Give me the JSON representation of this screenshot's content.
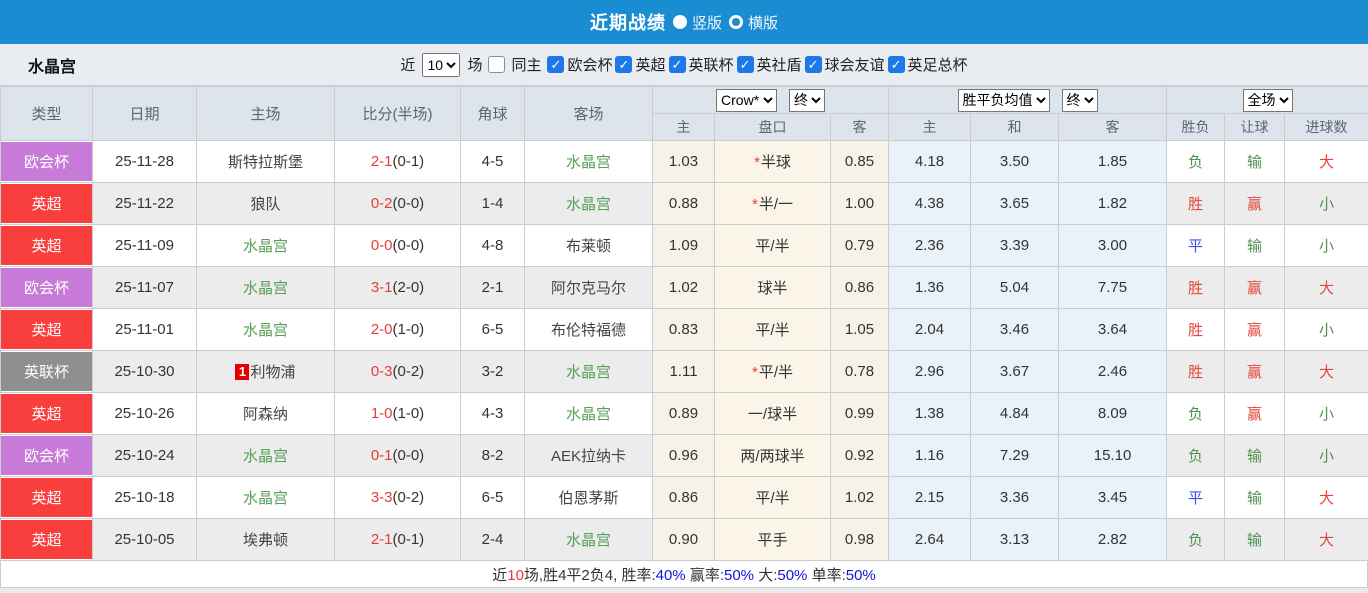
{
  "titlebar": {
    "title": "近期战绩",
    "layout_options": [
      {
        "label": "竖版",
        "selected": true
      },
      {
        "label": "横版",
        "selected": false
      }
    ]
  },
  "filterbar": {
    "team": "水晶宫",
    "recent_label": "近",
    "recent_value": "10",
    "games_label": "场",
    "same_home": {
      "label": "同主",
      "checked": false
    },
    "competitions": [
      {
        "label": "欧会杯",
        "checked": true
      },
      {
        "label": "英超",
        "checked": true
      },
      {
        "label": "英联杯",
        "checked": true
      },
      {
        "label": "英社盾",
        "checked": true
      },
      {
        "label": "球会友谊",
        "checked": true
      },
      {
        "label": "英足总杯",
        "checked": true
      }
    ]
  },
  "table": {
    "main_headers": [
      "类型",
      "日期",
      "主场",
      "比分(半场)",
      "角球",
      "客场"
    ],
    "subheaders": [
      "主",
      "盘口",
      "客",
      "主",
      "和",
      "客",
      "胜负",
      "让球",
      "进球数"
    ],
    "selects": {
      "odds_company": "Crow*",
      "odds_time": "终",
      "wdl_type": "胜平负均值",
      "wdl_time": "终",
      "goals_scope": "全场"
    },
    "rows": [
      {
        "type": "欧会杯",
        "date": "25-11-28",
        "home": "斯特拉斯堡",
        "home_is_team": false,
        "home_marker": null,
        "score": "2-1",
        "half": "(0-1)",
        "corners": "4-5",
        "away": "水晶宫",
        "away_is_team": true,
        "crow_home": "1.03",
        "handicap_star": true,
        "handicap": "半球",
        "crow_away": "0.85",
        "odds_home": "4.18",
        "odds_draw": "3.50",
        "odds_away": "1.85",
        "result": "负",
        "result_color": "green",
        "handicap_result": "输",
        "hr_color": "green",
        "goals": "大",
        "goals_color": "red"
      },
      {
        "type": "英超",
        "date": "25-11-22",
        "home": "狼队",
        "home_is_team": false,
        "home_marker": null,
        "score": "0-2",
        "half": "(0-0)",
        "corners": "1-4",
        "away": "水晶宫",
        "away_is_team": true,
        "crow_home": "0.88",
        "handicap_star": true,
        "handicap": "半/一",
        "crow_away": "1.00",
        "odds_home": "4.38",
        "odds_draw": "3.65",
        "odds_away": "1.82",
        "result": "胜",
        "result_color": "red",
        "handicap_result": "赢",
        "hr_color": "red",
        "goals": "小",
        "goals_color": "green"
      },
      {
        "type": "英超",
        "date": "25-11-09",
        "home": "水晶宫",
        "home_is_team": true,
        "home_marker": null,
        "score": "0-0",
        "half": "(0-0)",
        "corners": "4-8",
        "away": "布莱顿",
        "away_is_team": false,
        "crow_home": "1.09",
        "handicap_star": false,
        "handicap": "平/半",
        "crow_away": "0.79",
        "odds_home": "2.36",
        "odds_draw": "3.39",
        "odds_away": "3.00",
        "result": "平",
        "result_color": "blue",
        "handicap_result": "输",
        "hr_color": "green",
        "goals": "小",
        "goals_color": "green"
      },
      {
        "type": "欧会杯",
        "date": "25-11-07",
        "home": "水晶宫",
        "home_is_team": true,
        "home_marker": null,
        "score": "3-1",
        "half": "(2-0)",
        "corners": "2-1",
        "away": "阿尔克马尔",
        "away_is_team": false,
        "crow_home": "1.02",
        "handicap_star": false,
        "handicap": "球半",
        "crow_away": "0.86",
        "odds_home": "1.36",
        "odds_draw": "5.04",
        "odds_away": "7.75",
        "result": "胜",
        "result_color": "red",
        "handicap_result": "赢",
        "hr_color": "red",
        "goals": "大",
        "goals_color": "red"
      },
      {
        "type": "英超",
        "date": "25-11-01",
        "home": "水晶宫",
        "home_is_team": true,
        "home_marker": null,
        "score": "2-0",
        "half": "(1-0)",
        "corners": "6-5",
        "away": "布伦特福德",
        "away_is_team": false,
        "crow_home": "0.83",
        "handicap_star": false,
        "handicap": "平/半",
        "crow_away": "1.05",
        "odds_home": "2.04",
        "odds_draw": "3.46",
        "odds_away": "3.64",
        "result": "胜",
        "result_color": "red",
        "handicap_result": "赢",
        "hr_color": "red",
        "goals": "小",
        "goals_color": "green"
      },
      {
        "type": "英联杯",
        "date": "25-10-30",
        "home": "利物浦",
        "home_is_team": false,
        "home_marker": "1",
        "score": "0-3",
        "half": "(0-2)",
        "corners": "3-2",
        "away": "水晶宫",
        "away_is_team": true,
        "crow_home": "1.11",
        "handicap_star": true,
        "handicap": "平/半",
        "crow_away": "0.78",
        "odds_home": "2.96",
        "odds_draw": "3.67",
        "odds_away": "2.46",
        "result": "胜",
        "result_color": "red",
        "handicap_result": "赢",
        "hr_color": "red",
        "goals": "大",
        "goals_color": "red"
      },
      {
        "type": "英超",
        "date": "25-10-26",
        "home": "阿森纳",
        "home_is_team": false,
        "home_marker": null,
        "score": "1-0",
        "half": "(1-0)",
        "corners": "4-3",
        "away": "水晶宫",
        "away_is_team": true,
        "crow_home": "0.89",
        "handicap_star": false,
        "handicap": "一/球半",
        "crow_away": "0.99",
        "odds_home": "1.38",
        "odds_draw": "4.84",
        "odds_away": "8.09",
        "result": "负",
        "result_color": "green",
        "handicap_result": "赢",
        "hr_color": "red",
        "goals": "小",
        "goals_color": "green"
      },
      {
        "type": "欧会杯",
        "date": "25-10-24",
        "home": "水晶宫",
        "home_is_team": true,
        "home_marker": null,
        "score": "0-1",
        "half": "(0-0)",
        "corners": "8-2",
        "away": "AEK拉纳卡",
        "away_is_team": false,
        "crow_home": "0.96",
        "handicap_star": false,
        "handicap": "两/两球半",
        "crow_away": "0.92",
        "odds_home": "1.16",
        "odds_draw": "7.29",
        "odds_away": "15.10",
        "result": "负",
        "result_color": "green",
        "handicap_result": "输",
        "hr_color": "green",
        "goals": "小",
        "goals_color": "green"
      },
      {
        "type": "英超",
        "date": "25-10-18",
        "home": "水晶宫",
        "home_is_team": true,
        "home_marker": null,
        "score": "3-3",
        "half": "(0-2)",
        "corners": "6-5",
        "away": "伯恩茅斯",
        "away_is_team": false,
        "crow_home": "0.86",
        "handicap_star": false,
        "handicap": "平/半",
        "crow_away": "1.02",
        "odds_home": "2.15",
        "odds_draw": "3.36",
        "odds_away": "3.45",
        "result": "平",
        "result_color": "blue",
        "handicap_result": "输",
        "hr_color": "green",
        "goals": "大",
        "goals_color": "red"
      },
      {
        "type": "英超",
        "date": "25-10-05",
        "home": "埃弗顿",
        "home_is_team": false,
        "home_marker": null,
        "score": "2-1",
        "half": "(0-1)",
        "corners": "2-4",
        "away": "水晶宫",
        "away_is_team": true,
        "crow_home": "0.90",
        "handicap_star": false,
        "handicap": "平手",
        "crow_away": "0.98",
        "odds_home": "2.64",
        "odds_draw": "3.13",
        "odds_away": "2.82",
        "result": "负",
        "result_color": "green",
        "handicap_result": "输",
        "hr_color": "green",
        "goals": "大",
        "goals_color": "red"
      }
    ]
  },
  "footer": {
    "segments": [
      {
        "text": "近",
        "color": "dark"
      },
      {
        "text": "10",
        "color": "red"
      },
      {
        "text": "场,胜4平2负4, 胜率:",
        "color": "dark"
      },
      {
        "text": "40%",
        "color": "blue"
      },
      {
        "text": " 赢率:",
        "color": "dark"
      },
      {
        "text": "50%",
        "color": "blue"
      },
      {
        "text": " 大:",
        "color": "dark"
      },
      {
        "text": "50%",
        "color": "blue"
      },
      {
        "text": " 单率:",
        "color": "dark"
      },
      {
        "text": "50%",
        "color": "blue"
      }
    ]
  },
  "colors": {
    "accent_blue": "#1a8cd2",
    "badge": {
      "欧会杯": "#c77ad8",
      "英超": "#f93e3e",
      "英联杯": "#8f8f8f"
    },
    "team_green": "#58a058",
    "score_red": "#e93a3a",
    "result_red": "#e2483d",
    "result_green": "#4e9150",
    "result_blue": "#3f51e5",
    "percent_blue": "#1414e0",
    "marker_red": "#e60000"
  }
}
